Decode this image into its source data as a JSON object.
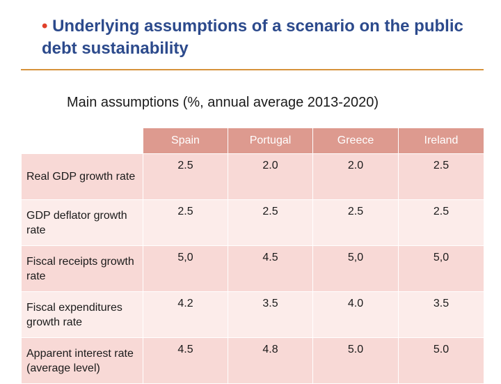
{
  "slide": {
    "title_bullet": "•",
    "title": "Underlying assumptions of a scenario on the public debt sustainability",
    "subtitle": "Main assumptions (%, annual average 2013-2020)"
  },
  "table": {
    "columns": [
      "Spain",
      "Portugal",
      "Greece",
      "Ireland"
    ],
    "rows": [
      {
        "label": "Real GDP growth rate",
        "values": [
          "2.5",
          "2.0",
          "2.0",
          "2.5"
        ]
      },
      {
        "label": "GDP deflator growth rate",
        "values": [
          "2.5",
          "2.5",
          "2.5",
          "2.5"
        ]
      },
      {
        "label": "Fiscal receipts growth rate",
        "values": [
          "5,0",
          "4.5",
          "5,0",
          "5,0"
        ]
      },
      {
        "label": "Fiscal expenditures growth rate",
        "values": [
          "4.2",
          "3.5",
          "4.0",
          "3.5"
        ]
      },
      {
        "label": "Apparent interest rate (average level)",
        "values": [
          "4.5",
          "4.8",
          "5.0",
          "5.0"
        ]
      }
    ]
  },
  "colors": {
    "title": "#2c4a8c",
    "bullet": "#e0402a",
    "rule": "#d6923a",
    "header_fill": "#dd9a8f",
    "row_fill_dark": "#f8d9d6",
    "row_fill_light": "#fcecea"
  }
}
